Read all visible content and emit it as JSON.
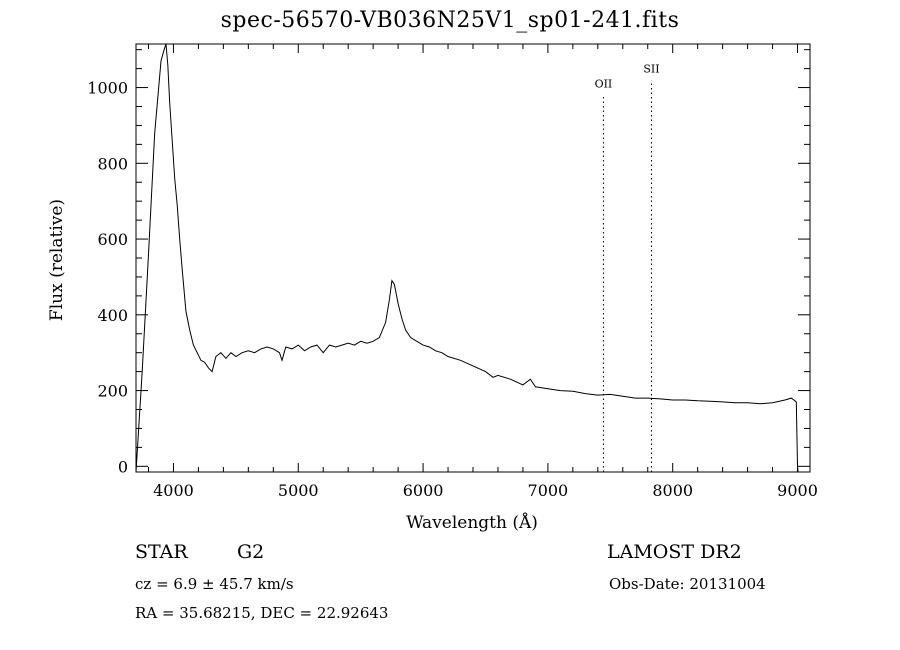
{
  "chart_data": {
    "type": "line",
    "title": "spec-56570-VB036N25V1_sp01-241.fits",
    "xlabel": "Wavelength (Å)",
    "ylabel": "Flux (relative)",
    "xlim": [
      3700,
      9100
    ],
    "ylim": [
      -15,
      1115
    ],
    "x_ticks": [
      4000,
      5000,
      6000,
      7000,
      8000,
      9000
    ],
    "y_ticks": [
      0,
      200,
      400,
      600,
      800,
      1000
    ],
    "grid": false,
    "legend": "none",
    "series": [
      {
        "x": [
          3700,
          3750,
          3800,
          3850,
          3900,
          3925,
          3940,
          3955,
          3970,
          3990,
          4010,
          4030,
          4050,
          4070,
          4100,
          4130,
          4160,
          4190,
          4220,
          4250,
          4280,
          4310,
          4340,
          4380,
          4420,
          4460,
          4500,
          4550,
          4600,
          4650,
          4700,
          4750,
          4800,
          4850,
          4870,
          4900,
          4950,
          5000,
          5050,
          5100,
          5150,
          5200,
          5250,
          5300,
          5350,
          5400,
          5450,
          5500,
          5550,
          5600,
          5650,
          5700,
          5730,
          5750,
          5770,
          5800,
          5830,
          5860,
          5900,
          5950,
          6000,
          6050,
          6100,
          6150,
          6200,
          6300,
          6400,
          6500,
          6560,
          6600,
          6700,
          6800,
          6860,
          6900,
          7000,
          7100,
          7200,
          7300,
          7400,
          7500,
          7600,
          7700,
          7800,
          7900,
          8000,
          8100,
          8200,
          8300,
          8400,
          8500,
          8600,
          8700,
          8800,
          8900,
          8950,
          8990,
          9000,
          9005
        ],
        "y": [
          -15,
          250,
          560,
          880,
          1070,
          1100,
          1115,
          1060,
          960,
          860,
          760,
          690,
          600,
          520,
          410,
          360,
          320,
          300,
          280,
          275,
          260,
          250,
          290,
          300,
          285,
          300,
          290,
          300,
          305,
          300,
          310,
          315,
          310,
          300,
          280,
          315,
          310,
          320,
          305,
          315,
          320,
          300,
          320,
          315,
          320,
          325,
          320,
          330,
          325,
          330,
          340,
          380,
          440,
          490,
          480,
          430,
          390,
          360,
          340,
          330,
          320,
          315,
          305,
          300,
          290,
          280,
          265,
          250,
          235,
          240,
          230,
          215,
          230,
          210,
          205,
          200,
          198,
          192,
          188,
          190,
          185,
          180,
          180,
          178,
          175,
          175,
          173,
          172,
          170,
          168,
          168,
          165,
          168,
          175,
          180,
          170,
          0,
          -15
        ]
      }
    ],
    "annotations": [
      {
        "label": "OII",
        "x": 7445,
        "line_ymax": 1000
      },
      {
        "label": "SII",
        "x": 7830,
        "line_ymax": 1040
      }
    ]
  },
  "info": {
    "object_class": "STAR",
    "subclass": "G2",
    "survey": "LAMOST DR2",
    "cz": "cz = 6.9 ± 45.7 km/s",
    "obs_date": "Obs-Date: 20131004",
    "coords": "RA =  35.68215, DEC =  22.92643"
  }
}
